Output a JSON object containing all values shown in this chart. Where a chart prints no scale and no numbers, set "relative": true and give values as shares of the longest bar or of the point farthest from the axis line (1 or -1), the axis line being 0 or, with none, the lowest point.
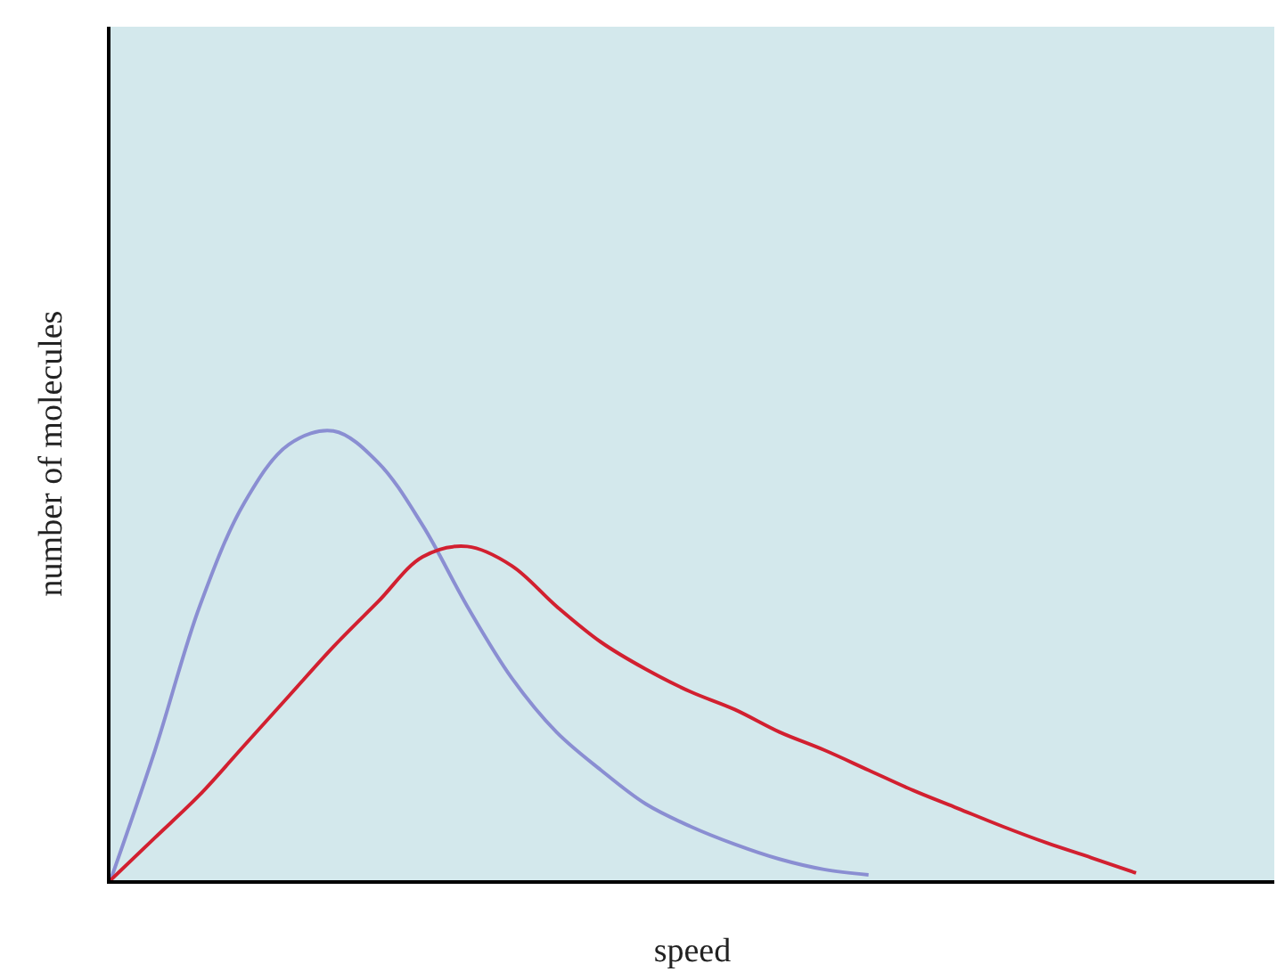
{
  "chart_data": {
    "type": "line",
    "relative": true,
    "xlabel": "speed",
    "ylabel": "number of molecules",
    "legend": false,
    "grid": false,
    "marker": "none",
    "line_style": "solid",
    "categories": [
      null,
      null,
      null,
      null,
      null,
      null,
      null,
      null,
      null,
      null,
      null,
      null,
      null,
      null,
      null,
      null,
      null,
      null,
      null,
      null,
      null,
      null,
      null,
      null,
      null,
      null,
      null
    ],
    "series": [
      {
        "color": "#8a8ed2",
        "values": [
          0,
          0.29,
          0.61,
          0.84,
          0.97,
          1.0,
          0.93,
          0.79,
          0.61,
          0.45,
          0.33,
          0.245,
          0.17,
          0.12,
          0.08,
          0.047,
          0.024,
          0.012,
          null,
          null,
          null,
          null,
          null,
          null,
          null,
          null,
          null
        ]
      },
      {
        "color": "#d22030",
        "values": [
          0,
          0.095,
          0.19,
          0.3,
          0.41,
          0.52,
          0.62,
          0.72,
          0.743,
          0.7,
          0.61,
          0.53,
          0.47,
          0.42,
          0.38,
          0.33,
          0.29,
          0.245,
          0.2,
          0.16,
          0.12,
          0.083,
          0.05,
          0.016,
          null,
          null,
          null
        ]
      }
    ]
  }
}
